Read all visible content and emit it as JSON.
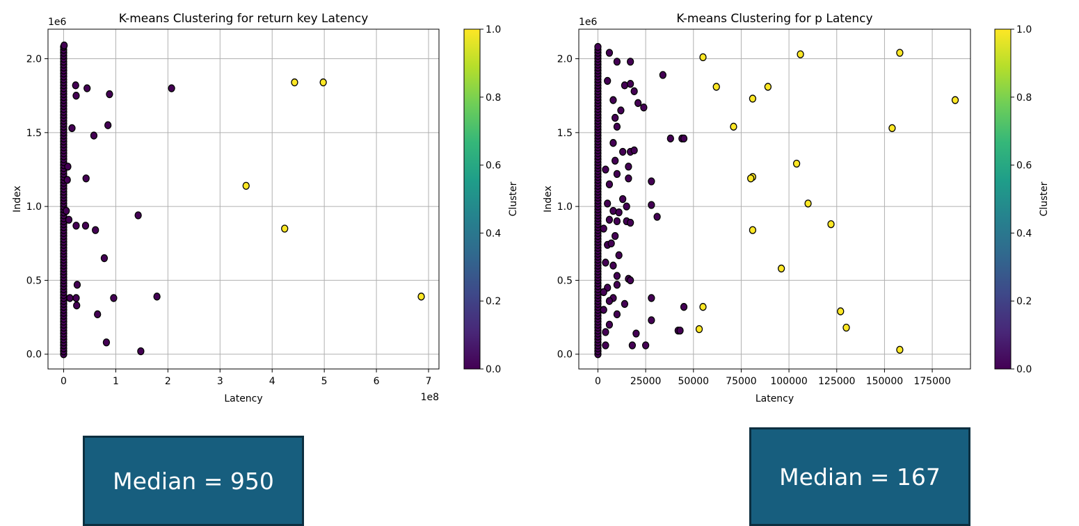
{
  "colors": {
    "cluster0": "#440154",
    "cluster1": "#fde725",
    "edge": "#000000",
    "grid": "#b0b0b0"
  },
  "colorbar": {
    "label": "Cluster",
    "ticks": [
      "0.0",
      "0.2",
      "0.4",
      "0.6",
      "0.8",
      "1.0"
    ],
    "stops": [
      "#440154",
      "#482878",
      "#3e4989",
      "#31688e",
      "#26828e",
      "#1f9e89",
      "#35b779",
      "#6ece58",
      "#b5de2b",
      "#fde725"
    ]
  },
  "chart_data": [
    {
      "type": "scatter",
      "title": "K-means Clustering for return key Latency",
      "xlabel": "Latency",
      "ylabel": "Index",
      "x_offset_text": "1e8",
      "y_offset_text": "1e6",
      "xlim": [
        -0.3,
        7.2
      ],
      "ylim": [
        -0.1,
        2.2
      ],
      "x_ticks": [
        0,
        1,
        2,
        3,
        4,
        5,
        6,
        7
      ],
      "x_tick_labels": [
        "0",
        "1",
        "2",
        "3",
        "4",
        "5",
        "6",
        "7"
      ],
      "y_ticks": [
        0,
        0.5,
        1.0,
        1.5,
        2.0
      ],
      "y_tick_labels": [
        "0.0",
        "0.5",
        "1.0",
        "1.5",
        "2.0"
      ],
      "grid": true,
      "dense_column": {
        "x": 0.0,
        "y_from": 0.0,
        "y_to": 2.08,
        "cluster": 0
      },
      "points": [
        {
          "x": 0.01,
          "y": 2.09,
          "cluster": 0
        },
        {
          "x": 0.23,
          "y": 1.82,
          "cluster": 0
        },
        {
          "x": 0.45,
          "y": 1.8,
          "cluster": 0
        },
        {
          "x": 0.88,
          "y": 1.76,
          "cluster": 0
        },
        {
          "x": 0.24,
          "y": 1.75,
          "cluster": 0
        },
        {
          "x": 2.07,
          "y": 1.8,
          "cluster": 0
        },
        {
          "x": 0.16,
          "y": 1.53,
          "cluster": 0
        },
        {
          "x": 0.85,
          "y": 1.55,
          "cluster": 0
        },
        {
          "x": 0.58,
          "y": 1.48,
          "cluster": 0
        },
        {
          "x": 0.08,
          "y": 1.27,
          "cluster": 0
        },
        {
          "x": 0.43,
          "y": 1.19,
          "cluster": 0
        },
        {
          "x": 0.07,
          "y": 1.18,
          "cluster": 0
        },
        {
          "x": 0.05,
          "y": 0.97,
          "cluster": 0
        },
        {
          "x": 1.43,
          "y": 0.94,
          "cluster": 0
        },
        {
          "x": 0.1,
          "y": 0.91,
          "cluster": 0
        },
        {
          "x": 0.24,
          "y": 0.87,
          "cluster": 0
        },
        {
          "x": 0.42,
          "y": 0.87,
          "cluster": 0
        },
        {
          "x": 0.61,
          "y": 0.84,
          "cluster": 0
        },
        {
          "x": 0.78,
          "y": 0.65,
          "cluster": 0
        },
        {
          "x": 0.26,
          "y": 0.47,
          "cluster": 0
        },
        {
          "x": 1.79,
          "y": 0.39,
          "cluster": 0
        },
        {
          "x": 0.96,
          "y": 0.38,
          "cluster": 0
        },
        {
          "x": 0.12,
          "y": 0.38,
          "cluster": 0
        },
        {
          "x": 0.24,
          "y": 0.38,
          "cluster": 0
        },
        {
          "x": 0.25,
          "y": 0.33,
          "cluster": 0
        },
        {
          "x": 0.65,
          "y": 0.27,
          "cluster": 0
        },
        {
          "x": 0.82,
          "y": 0.08,
          "cluster": 0
        },
        {
          "x": 1.48,
          "y": 0.02,
          "cluster": 0
        },
        {
          "x": 4.43,
          "y": 1.84,
          "cluster": 1
        },
        {
          "x": 4.98,
          "y": 1.84,
          "cluster": 1
        },
        {
          "x": 3.5,
          "y": 1.14,
          "cluster": 1
        },
        {
          "x": 4.24,
          "y": 0.85,
          "cluster": 1
        },
        {
          "x": 6.86,
          "y": 0.39,
          "cluster": 1
        }
      ]
    },
    {
      "type": "scatter",
      "title": "K-means Clustering for p Latency",
      "xlabel": "Latency",
      "ylabel": "Index",
      "y_offset_text": "1e6",
      "xlim": [
        -10000,
        195000
      ],
      "ylim": [
        -0.1,
        2.2
      ],
      "x_ticks": [
        0,
        25000,
        50000,
        75000,
        100000,
        125000,
        150000,
        175000
      ],
      "x_tick_labels": [
        "0",
        "25000",
        "50000",
        "75000",
        "100000",
        "125000",
        "150000",
        "175000"
      ],
      "y_ticks": [
        0,
        0.5,
        1.0,
        1.5,
        2.0
      ],
      "y_tick_labels": [
        "0.0",
        "0.5",
        "1.0",
        "1.5",
        "2.0"
      ],
      "grid": true,
      "dense_column": {
        "x": 0,
        "y_from": 0.0,
        "y_to": 2.08,
        "cluster": 0
      },
      "points": [
        {
          "x": 6000,
          "y": 2.04,
          "cluster": 0
        },
        {
          "x": 10000,
          "y": 1.98,
          "cluster": 0
        },
        {
          "x": 17000,
          "y": 1.98,
          "cluster": 0
        },
        {
          "x": 34000,
          "y": 1.89,
          "cluster": 0
        },
        {
          "x": 5000,
          "y": 1.85,
          "cluster": 0
        },
        {
          "x": 14000,
          "y": 1.82,
          "cluster": 0
        },
        {
          "x": 17000,
          "y": 1.83,
          "cluster": 0
        },
        {
          "x": 19000,
          "y": 1.78,
          "cluster": 0
        },
        {
          "x": 8000,
          "y": 1.72,
          "cluster": 0
        },
        {
          "x": 21000,
          "y": 1.7,
          "cluster": 0
        },
        {
          "x": 24000,
          "y": 1.67,
          "cluster": 0
        },
        {
          "x": 12000,
          "y": 1.65,
          "cluster": 0
        },
        {
          "x": 9000,
          "y": 1.6,
          "cluster": 0
        },
        {
          "x": 10000,
          "y": 1.54,
          "cluster": 0
        },
        {
          "x": 38000,
          "y": 1.46,
          "cluster": 0
        },
        {
          "x": 44000,
          "y": 1.46,
          "cluster": 0
        },
        {
          "x": 45000,
          "y": 1.46,
          "cluster": 0
        },
        {
          "x": 8000,
          "y": 1.43,
          "cluster": 0
        },
        {
          "x": 13000,
          "y": 1.37,
          "cluster": 0
        },
        {
          "x": 17000,
          "y": 1.37,
          "cluster": 0
        },
        {
          "x": 19000,
          "y": 1.38,
          "cluster": 0
        },
        {
          "x": 9000,
          "y": 1.31,
          "cluster": 0
        },
        {
          "x": 16000,
          "y": 1.27,
          "cluster": 0
        },
        {
          "x": 4000,
          "y": 1.25,
          "cluster": 0
        },
        {
          "x": 10000,
          "y": 1.22,
          "cluster": 0
        },
        {
          "x": 16000,
          "y": 1.19,
          "cluster": 0
        },
        {
          "x": 28000,
          "y": 1.17,
          "cluster": 0
        },
        {
          "x": 6000,
          "y": 1.15,
          "cluster": 0
        },
        {
          "x": 13000,
          "y": 1.05,
          "cluster": 0
        },
        {
          "x": 5000,
          "y": 1.02,
          "cluster": 0
        },
        {
          "x": 28000,
          "y": 1.01,
          "cluster": 0
        },
        {
          "x": 15000,
          "y": 1.0,
          "cluster": 0
        },
        {
          "x": 8000,
          "y": 0.97,
          "cluster": 0
        },
        {
          "x": 11000,
          "y": 0.96,
          "cluster": 0
        },
        {
          "x": 31000,
          "y": 0.93,
          "cluster": 0
        },
        {
          "x": 6000,
          "y": 0.91,
          "cluster": 0
        },
        {
          "x": 10000,
          "y": 0.9,
          "cluster": 0
        },
        {
          "x": 15000,
          "y": 0.9,
          "cluster": 0
        },
        {
          "x": 17000,
          "y": 0.89,
          "cluster": 0
        },
        {
          "x": 3000,
          "y": 0.85,
          "cluster": 0
        },
        {
          "x": 9000,
          "y": 0.8,
          "cluster": 0
        },
        {
          "x": 5000,
          "y": 0.74,
          "cluster": 0
        },
        {
          "x": 7000,
          "y": 0.75,
          "cluster": 0
        },
        {
          "x": 11000,
          "y": 0.67,
          "cluster": 0
        },
        {
          "x": 4000,
          "y": 0.62,
          "cluster": 0
        },
        {
          "x": 8000,
          "y": 0.6,
          "cluster": 0
        },
        {
          "x": 10000,
          "y": 0.53,
          "cluster": 0
        },
        {
          "x": 16000,
          "y": 0.51,
          "cluster": 0
        },
        {
          "x": 17000,
          "y": 0.5,
          "cluster": 0
        },
        {
          "x": 5000,
          "y": 0.45,
          "cluster": 0
        },
        {
          "x": 10000,
          "y": 0.47,
          "cluster": 0
        },
        {
          "x": 3000,
          "y": 0.42,
          "cluster": 0
        },
        {
          "x": 8000,
          "y": 0.38,
          "cluster": 0
        },
        {
          "x": 28000,
          "y": 0.38,
          "cluster": 0
        },
        {
          "x": 6000,
          "y": 0.36,
          "cluster": 0
        },
        {
          "x": 14000,
          "y": 0.34,
          "cluster": 0
        },
        {
          "x": 45000,
          "y": 0.32,
          "cluster": 0
        },
        {
          "x": 3000,
          "y": 0.3,
          "cluster": 0
        },
        {
          "x": 10000,
          "y": 0.27,
          "cluster": 0
        },
        {
          "x": 28000,
          "y": 0.23,
          "cluster": 0
        },
        {
          "x": 6000,
          "y": 0.2,
          "cluster": 0
        },
        {
          "x": 4000,
          "y": 0.15,
          "cluster": 0
        },
        {
          "x": 20000,
          "y": 0.14,
          "cluster": 0
        },
        {
          "x": 42000,
          "y": 0.16,
          "cluster": 0
        },
        {
          "x": 43000,
          "y": 0.16,
          "cluster": 0
        },
        {
          "x": 4000,
          "y": 0.06,
          "cluster": 0
        },
        {
          "x": 18000,
          "y": 0.06,
          "cluster": 0
        },
        {
          "x": 25000,
          "y": 0.06,
          "cluster": 0
        },
        {
          "x": 55000,
          "y": 2.01,
          "cluster": 1
        },
        {
          "x": 106000,
          "y": 2.03,
          "cluster": 1
        },
        {
          "x": 158000,
          "y": 2.04,
          "cluster": 1
        },
        {
          "x": 62000,
          "y": 1.81,
          "cluster": 1
        },
        {
          "x": 89000,
          "y": 1.81,
          "cluster": 1
        },
        {
          "x": 81000,
          "y": 1.73,
          "cluster": 1
        },
        {
          "x": 187000,
          "y": 1.72,
          "cluster": 1
        },
        {
          "x": 71000,
          "y": 1.54,
          "cluster": 1
        },
        {
          "x": 154000,
          "y": 1.53,
          "cluster": 1
        },
        {
          "x": 104000,
          "y": 1.29,
          "cluster": 1
        },
        {
          "x": 81000,
          "y": 1.2,
          "cluster": 1
        },
        {
          "x": 80000,
          "y": 1.19,
          "cluster": 1
        },
        {
          "x": 110000,
          "y": 1.02,
          "cluster": 1
        },
        {
          "x": 122000,
          "y": 0.88,
          "cluster": 1
        },
        {
          "x": 81000,
          "y": 0.84,
          "cluster": 1
        },
        {
          "x": 96000,
          "y": 0.58,
          "cluster": 1
        },
        {
          "x": 55000,
          "y": 0.32,
          "cluster": 1
        },
        {
          "x": 127000,
          "y": 0.29,
          "cluster": 1
        },
        {
          "x": 130000,
          "y": 0.18,
          "cluster": 1
        },
        {
          "x": 53000,
          "y": 0.17,
          "cluster": 1
        },
        {
          "x": 158000,
          "y": 0.03,
          "cluster": 1
        }
      ]
    }
  ],
  "medians": {
    "left": "Median = 950",
    "right": "Median = 167"
  }
}
